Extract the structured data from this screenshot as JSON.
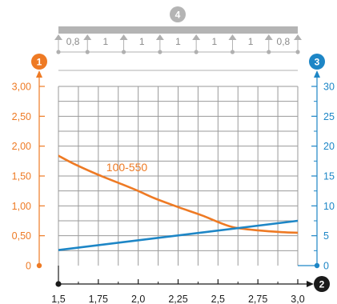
{
  "chart_data": {
    "type": "line",
    "markers": {
      "beam": "4",
      "y_left": "1",
      "x_axis": "2",
      "y_right": "3"
    },
    "span_labels": [
      "0,8",
      "1",
      "1",
      "1",
      "1",
      "1",
      "0,8"
    ],
    "x_ticks": [
      "1,5",
      "1,75",
      "2,0",
      "2,25",
      "2,5",
      "2,75",
      "3,0"
    ],
    "x_range": [
      1.5,
      3.0
    ],
    "y_left_ticks": [
      "0",
      "0,50",
      "1,00",
      "1,50",
      "2,00",
      "2,50",
      "3,00"
    ],
    "y_left_range": [
      0,
      3.0
    ],
    "y_right_ticks": [
      "0",
      "5",
      "10",
      "15",
      "20",
      "25",
      "30"
    ],
    "y_right_range": [
      0,
      30
    ],
    "grid": true,
    "series": [
      {
        "name": "100-550",
        "axis": "left",
        "color": "#ee7a24",
        "x": [
          1.5,
          1.6,
          1.75,
          1.9,
          2.0,
          2.1,
          2.25,
          2.4,
          2.5,
          2.6,
          2.75,
          2.9,
          3.0
        ],
        "y": [
          1.84,
          1.7,
          1.52,
          1.36,
          1.25,
          1.13,
          0.98,
          0.84,
          0.73,
          0.64,
          0.59,
          0.56,
          0.55
        ]
      },
      {
        "name": "",
        "axis": "right",
        "color": "#1d86c6",
        "x": [
          1.5,
          3.0
        ],
        "y": [
          2.6,
          7.5
        ]
      }
    ]
  },
  "colors": {
    "orange": "#ee7a24",
    "blue": "#1d86c6",
    "dark": "#1a1a1a",
    "grid": "#9a9a9a",
    "beam": "#b4b4b4"
  }
}
